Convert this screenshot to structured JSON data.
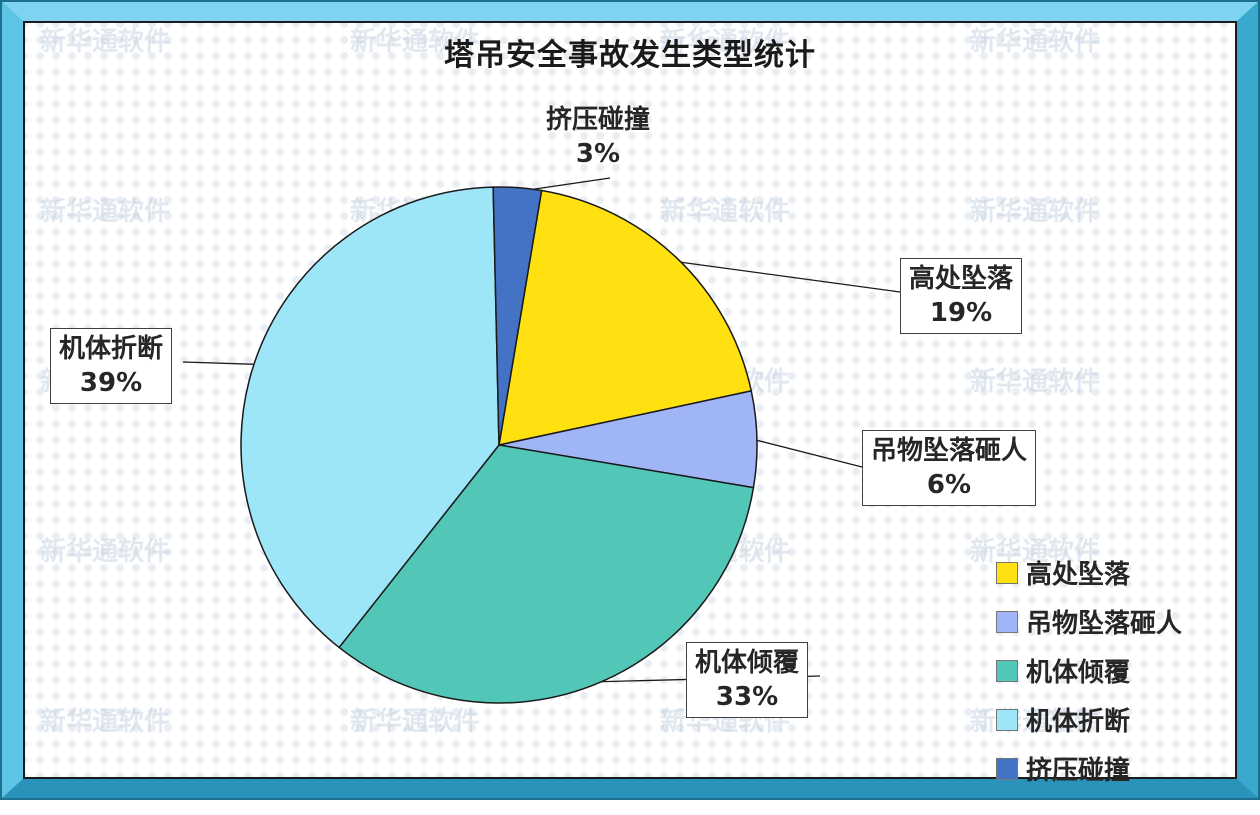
{
  "chart_data": {
    "type": "pie",
    "title": "塔吊安全事故发生类型统计",
    "slices": [
      {
        "label": "高处坠落",
        "value": 19,
        "pct_label": "19%",
        "color": "#FFE010"
      },
      {
        "label": "吊物坠落砸人",
        "value": 6,
        "pct_label": "6%",
        "color": "#A0B5F5"
      },
      {
        "label": "机体倾覆",
        "value": 33,
        "pct_label": "33%",
        "color": "#52C7B8"
      },
      {
        "label": "机体折断",
        "value": 39,
        "pct_label": "39%",
        "color": "#9DE6F8"
      },
      {
        "label": "挤压碰撞",
        "value": 3,
        "pct_label": "3%",
        "color": "#4472C4"
      }
    ],
    "start_angle_deg": 9.5,
    "legend_position": "bottom-right"
  },
  "watermark": {
    "text": "新华通软件"
  },
  "colors": {
    "frame_outer": "#2F9FC7",
    "frame_inner": "#4CB9DC",
    "plot_border": "#1a1a1a"
  }
}
